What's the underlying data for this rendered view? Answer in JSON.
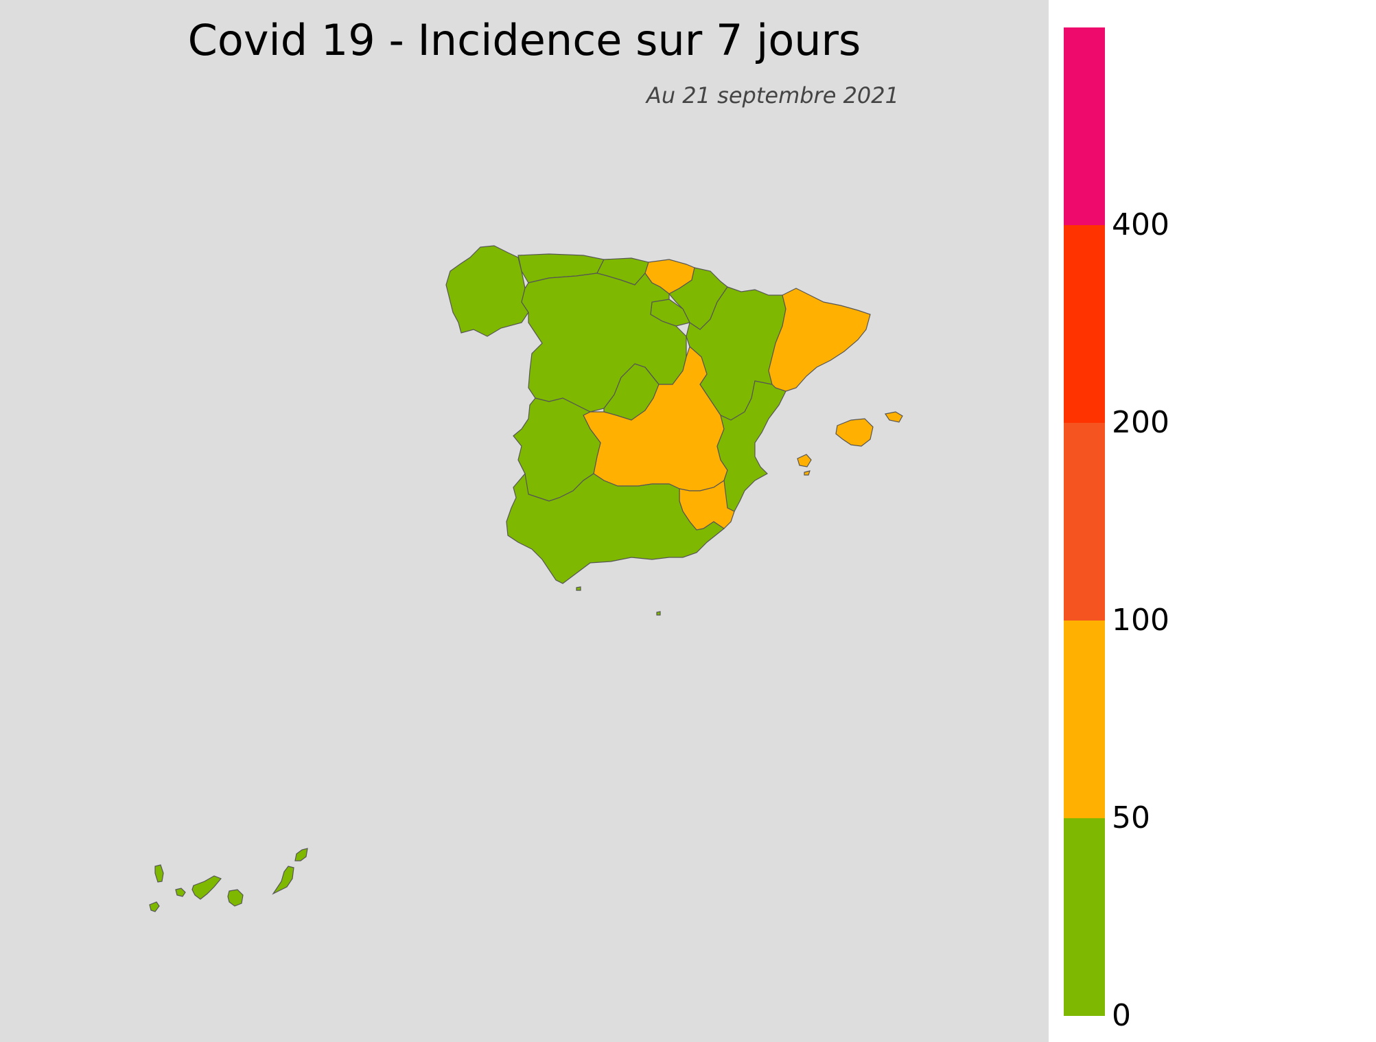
{
  "title": "Covid 19 - Incidence sur 7 jours",
  "subtitle": "Au 21 septembre 2021",
  "colors": {
    "background": "#dddddd",
    "low": "#7fb800",
    "medium": "#ffb000",
    "high": "#f55420",
    "very_high": "#ff3300",
    "extreme": "#ee0a6c",
    "border": "#555555"
  },
  "legend": {
    "scale_type": "binned",
    "bins": [
      {
        "from": 0,
        "to": 50,
        "color": "#7fb800"
      },
      {
        "from": 50,
        "to": 100,
        "color": "#ffb000"
      },
      {
        "from": 100,
        "to": 200,
        "color": "#f55420"
      },
      {
        "from": 200,
        "to": 400,
        "color": "#ff3300"
      },
      {
        "from": 400,
        "to": null,
        "color": "#ee0a6c"
      }
    ],
    "ticks": [
      "0",
      "50",
      "100",
      "200",
      "400"
    ]
  },
  "regions": [
    {
      "key": "galicia",
      "category": "0-50"
    },
    {
      "key": "asturias",
      "category": "0-50"
    },
    {
      "key": "cantabria",
      "category": "0-50"
    },
    {
      "key": "pais-vasco",
      "category": "50-100"
    },
    {
      "key": "navarra",
      "category": "0-50"
    },
    {
      "key": "la-rioja",
      "category": "0-50"
    },
    {
      "key": "aragon",
      "category": "0-50"
    },
    {
      "key": "cataluna",
      "category": "50-100"
    },
    {
      "key": "castilla-leon",
      "category": "0-50"
    },
    {
      "key": "madrid",
      "category": "0-50"
    },
    {
      "key": "castilla-la-mancha",
      "category": "50-100"
    },
    {
      "key": "extremadura",
      "category": "0-50"
    },
    {
      "key": "valencia",
      "category": "0-50"
    },
    {
      "key": "murcia",
      "category": "50-100"
    },
    {
      "key": "andalucia",
      "category": "0-50"
    },
    {
      "key": "baleares",
      "category": "50-100"
    },
    {
      "key": "canarias",
      "category": "0-50"
    },
    {
      "key": "ceuta",
      "category": "0-50"
    },
    {
      "key": "melilla",
      "category": "0-50"
    }
  ]
}
